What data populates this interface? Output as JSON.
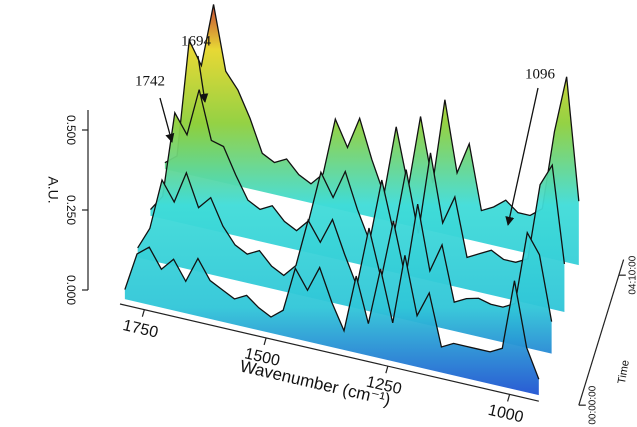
{
  "chart_data": {
    "type": "waterfall",
    "x_label": "Wavenumber (cm⁻¹)",
    "y_label": "A.U.",
    "z_label": "Time",
    "x": [
      1790,
      1765,
      1740,
      1715,
      1690,
      1665,
      1640,
      1615,
      1590,
      1565,
      1540,
      1515,
      1490,
      1465,
      1440,
      1415,
      1390,
      1365,
      1340,
      1315,
      1290,
      1265,
      1240,
      1215,
      1190,
      1165,
      1140,
      1115,
      1090,
      1065,
      1040,
      1015,
      990,
      965,
      940
    ],
    "xlim": [
      1800,
      940
    ],
    "xticks": [
      1750,
      1500,
      1250,
      1000
    ],
    "ylim": [
      0,
      0.6
    ],
    "yticks": [
      {
        "value": 0,
        "label": "0.000"
      },
      {
        "value": 0.25,
        "label": "0.250"
      },
      {
        "value": 0.5,
        "label": "0.500"
      }
    ],
    "zlim": [
      0,
      280
    ],
    "zticks": [
      {
        "value": 0,
        "label": "00:00:00"
      },
      {
        "value": 250,
        "label": "04:10:00"
      }
    ],
    "series": [
      {
        "z": 0,
        "values": [
          0.03,
          0.15,
          0.18,
          0.12,
          0.16,
          0.1,
          0.18,
          0.12,
          0.1,
          0.08,
          0.1,
          0.07,
          0.05,
          0.08,
          0.22,
          0.16,
          0.24,
          0.14,
          0.06,
          0.24,
          0.1,
          0.28,
          0.12,
          0.34,
          0.16,
          0.24,
          0.08,
          0.1,
          0.1,
          0.1,
          0.1,
          0.12,
          0.34,
          0.14,
          0.05
        ]
      },
      {
        "z": 80,
        "values": [
          0.03,
          0.1,
          0.26,
          0.2,
          0.3,
          0.2,
          0.24,
          0.16,
          0.11,
          0.09,
          0.11,
          0.07,
          0.05,
          0.09,
          0.24,
          0.18,
          0.26,
          0.16,
          0.07,
          0.26,
          0.11,
          0.3,
          0.13,
          0.37,
          0.17,
          0.26,
          0.09,
          0.11,
          0.12,
          0.11,
          0.11,
          0.13,
          0.36,
          0.3,
          0.1
        ]
      },
      {
        "z": 160,
        "values": [
          0.02,
          0.07,
          0.34,
          0.28,
          0.43,
          0.28,
          0.27,
          0.19,
          0.12,
          0.1,
          0.12,
          0.08,
          0.06,
          0.1,
          0.26,
          0.19,
          0.28,
          0.17,
          0.08,
          0.28,
          0.12,
          0.33,
          0.14,
          0.4,
          0.19,
          0.28,
          0.1,
          0.12,
          0.14,
          0.12,
          0.12,
          0.14,
          0.38,
          0.45,
          0.15
        ]
      },
      {
        "z": 250,
        "values": [
          0.02,
          0.05,
          0.42,
          0.35,
          0.55,
          0.35,
          0.3,
          0.22,
          0.12,
          0.1,
          0.12,
          0.08,
          0.06,
          0.1,
          0.28,
          0.2,
          0.3,
          0.18,
          0.08,
          0.3,
          0.12,
          0.35,
          0.15,
          0.42,
          0.2,
          0.3,
          0.1,
          0.12,
          0.15,
          0.12,
          0.12,
          0.15,
          0.4,
          0.58,
          0.2
        ]
      }
    ],
    "annotations": [
      {
        "text": "1742"
      },
      {
        "text": "1694"
      },
      {
        "text": "1096"
      }
    ]
  }
}
